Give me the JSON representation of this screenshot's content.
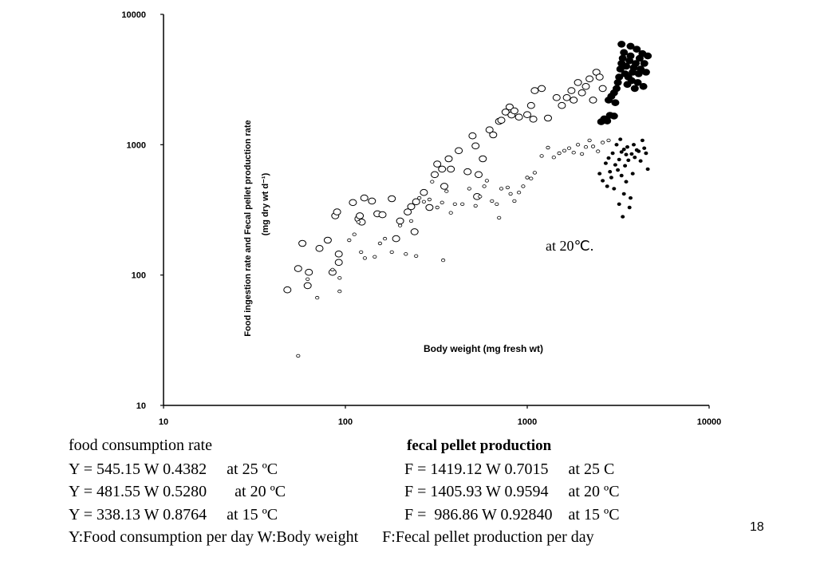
{
  "chart_data": {
    "type": "scatter",
    "title": "",
    "xlabel": "Body weight (mg fresh wt)",
    "ylabel_line1": "Food ingestion rate and Fecal pellet production rate",
    "ylabel_line2": "(mg dry wt d⁻¹)",
    "xscale": "log",
    "yscale": "log",
    "xlim": [
      10,
      10000
    ],
    "ylim": [
      10,
      10000
    ],
    "x_ticks": [
      "10",
      "100",
      "1000",
      "10000"
    ],
    "y_ticks": [
      "10",
      "100",
      "1000",
      "10000"
    ],
    "grid": false,
    "legend": "none",
    "annotation": "at 20℃.",
    "series": [
      {
        "marker": "open-circle-large",
        "points": [
          [
            48,
            77
          ],
          [
            55,
            112
          ],
          [
            58,
            175
          ],
          [
            62,
            83
          ],
          [
            63,
            105
          ],
          [
            72,
            160
          ],
          [
            80,
            185
          ],
          [
            85,
            105
          ],
          [
            88,
            285
          ],
          [
            90,
            305
          ],
          [
            92,
            145
          ],
          [
            92,
            125
          ],
          [
            110,
            360
          ],
          [
            118,
            270
          ],
          [
            120,
            285
          ],
          [
            123,
            255
          ],
          [
            127,
            390
          ],
          [
            140,
            370
          ],
          [
            150,
            295
          ],
          [
            160,
            290
          ],
          [
            180,
            385
          ],
          [
            190,
            190
          ],
          [
            200,
            260
          ],
          [
            220,
            305
          ],
          [
            230,
            335
          ],
          [
            240,
            215
          ],
          [
            245,
            365
          ],
          [
            270,
            430
          ],
          [
            290,
            330
          ],
          [
            310,
            590
          ],
          [
            320,
            710
          ],
          [
            340,
            650
          ],
          [
            350,
            480
          ],
          [
            370,
            780
          ],
          [
            380,
            650
          ],
          [
            420,
            900
          ],
          [
            470,
            620
          ],
          [
            500,
            1170
          ],
          [
            520,
            980
          ],
          [
            530,
            400
          ],
          [
            540,
            590
          ],
          [
            570,
            780
          ],
          [
            620,
            1300
          ],
          [
            650,
            1190
          ],
          [
            700,
            1510
          ],
          [
            720,
            1540
          ],
          [
            760,
            1780
          ],
          [
            800,
            1950
          ],
          [
            820,
            1690
          ],
          [
            850,
            1820
          ],
          [
            900,
            1630
          ],
          [
            1000,
            1700
          ],
          [
            1050,
            2000
          ],
          [
            1080,
            1570
          ],
          [
            1100,
            2600
          ],
          [
            1200,
            2700
          ],
          [
            1300,
            1600
          ],
          [
            1450,
            2300
          ],
          [
            1550,
            2000
          ],
          [
            1650,
            2300
          ],
          [
            1750,
            2600
          ],
          [
            1800,
            2200
          ],
          [
            1900,
            3000
          ],
          [
            2000,
            2500
          ],
          [
            2100,
            2800
          ],
          [
            2200,
            3200
          ],
          [
            2300,
            2200
          ],
          [
            2400,
            3600
          ],
          [
            2500,
            3300
          ],
          [
            2600,
            2700
          ]
        ]
      },
      {
        "marker": "open-circle-small",
        "points": [
          [
            55,
            24
          ],
          [
            62,
            93
          ],
          [
            70,
            67
          ],
          [
            85,
            110
          ],
          [
            93,
            95
          ],
          [
            93,
            75
          ],
          [
            105,
            185
          ],
          [
            112,
            205
          ],
          [
            118,
            255
          ],
          [
            122,
            150
          ],
          [
            128,
            135
          ],
          [
            145,
            138
          ],
          [
            155,
            175
          ],
          [
            165,
            190
          ],
          [
            180,
            150
          ],
          [
            200,
            240
          ],
          [
            215,
            145
          ],
          [
            230,
            260
          ],
          [
            245,
            140
          ],
          [
            255,
            390
          ],
          [
            270,
            365
          ],
          [
            290,
            380
          ],
          [
            300,
            520
          ],
          [
            320,
            330
          ],
          [
            340,
            360
          ],
          [
            345,
            130
          ],
          [
            360,
            440
          ],
          [
            380,
            300
          ],
          [
            400,
            350
          ],
          [
            440,
            350
          ],
          [
            480,
            460
          ],
          [
            520,
            340
          ],
          [
            550,
            400
          ],
          [
            580,
            480
          ],
          [
            600,
            530
          ],
          [
            640,
            370
          ],
          [
            680,
            350
          ],
          [
            700,
            275
          ],
          [
            720,
            460
          ],
          [
            780,
            470
          ],
          [
            810,
            420
          ],
          [
            850,
            370
          ],
          [
            900,
            430
          ],
          [
            950,
            480
          ],
          [
            1000,
            560
          ],
          [
            1050,
            550
          ],
          [
            1100,
            610
          ],
          [
            1200,
            820
          ],
          [
            1300,
            950
          ],
          [
            1400,
            800
          ],
          [
            1500,
            860
          ],
          [
            1600,
            900
          ],
          [
            1700,
            940
          ],
          [
            1800,
            870
          ],
          [
            1900,
            1000
          ],
          [
            2000,
            850
          ],
          [
            2100,
            960
          ],
          [
            2200,
            1080
          ],
          [
            2300,
            970
          ],
          [
            2450,
            890
          ],
          [
            2600,
            1040
          ],
          [
            2800,
            1080
          ]
        ]
      },
      {
        "marker": "filled-circle-large",
        "points": [
          [
            2550,
            1500
          ],
          [
            2650,
            1580
          ],
          [
            2750,
            1520
          ],
          [
            2850,
            1680
          ],
          [
            3000,
            1660
          ],
          [
            2800,
            2200
          ],
          [
            2900,
            2350
          ],
          [
            3000,
            2500
          ],
          [
            3100,
            2700
          ],
          [
            3050,
            2100
          ],
          [
            3150,
            3000
          ],
          [
            3200,
            3300
          ],
          [
            3250,
            3800
          ],
          [
            3300,
            4200
          ],
          [
            3350,
            4600
          ],
          [
            3400,
            5100
          ],
          [
            3450,
            3500
          ],
          [
            3500,
            4000
          ],
          [
            3550,
            2900
          ],
          [
            3600,
            3300
          ],
          [
            3650,
            4400
          ],
          [
            3700,
            4800
          ],
          [
            3750,
            3100
          ],
          [
            3800,
            3600
          ],
          [
            3850,
            3900
          ],
          [
            3900,
            2700
          ],
          [
            3950,
            4200
          ],
          [
            4000,
            5400
          ],
          [
            4050,
            3000
          ],
          [
            4100,
            3500
          ],
          [
            4150,
            4600
          ],
          [
            4200,
            3800
          ],
          [
            4300,
            5000
          ],
          [
            4400,
            4200
          ],
          [
            4500,
            3600
          ],
          [
            4600,
            4800
          ],
          [
            3300,
            5900
          ],
          [
            3700,
            5700
          ],
          [
            4350,
            2800
          ]
        ]
      },
      {
        "marker": "filled-circle-small",
        "points": [
          [
            2500,
            600
          ],
          [
            2600,
            530
          ],
          [
            2700,
            720
          ],
          [
            2750,
            480
          ],
          [
            2800,
            790
          ],
          [
            2850,
            620
          ],
          [
            2900,
            560
          ],
          [
            2950,
            860
          ],
          [
            3000,
            460
          ],
          [
            3050,
            700
          ],
          [
            3100,
            1000
          ],
          [
            3150,
            640
          ],
          [
            3200,
            770
          ],
          [
            3250,
            1100
          ],
          [
            3300,
            880
          ],
          [
            3350,
            280
          ],
          [
            3400,
            420
          ],
          [
            3450,
            690
          ],
          [
            3500,
            840
          ],
          [
            3550,
            960
          ],
          [
            3600,
            760
          ],
          [
            3650,
            330
          ],
          [
            3700,
            390
          ],
          [
            3750,
            850
          ],
          [
            3800,
            600
          ],
          [
            3850,
            1000
          ],
          [
            3900,
            800
          ],
          [
            4000,
            910
          ],
          [
            4100,
            890
          ],
          [
            4200,
            750
          ],
          [
            4300,
            1080
          ],
          [
            4400,
            940
          ],
          [
            4500,
            860
          ],
          [
            4600,
            650
          ],
          [
            3200,
            350
          ],
          [
            3300,
            580
          ],
          [
            3400,
            920
          ],
          [
            3500,
            520
          ]
        ]
      }
    ]
  },
  "equations": {
    "consumption_header": "food consumption rate",
    "pellet_header": "fecal pellet production",
    "rows": [
      {
        "food": "Y = 545.15 W 0.4382     at 25 ºC",
        "pellet": "F = 1419.12 W 0.7015     at 25 C"
      },
      {
        "food": "Y = 481.55 W 0.5280       at 20 ºC",
        "pellet": "F = 1405.93 W 0.9594     at 20 ºC"
      },
      {
        "food": "Y = 338.13 W 0.8764     at 15 ºC",
        "pellet": "F =  986.86 W 0.92840    at 15 ºC"
      }
    ],
    "legend_line": "Y:Food consumption per day W:Body weight      F:Fecal pellet production per day"
  },
  "page_number": "18"
}
